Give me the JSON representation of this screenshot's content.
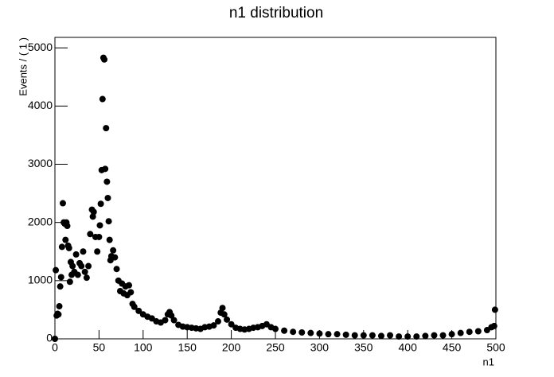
{
  "chart_data": {
    "type": "scatter",
    "title": "n1 distribution",
    "x_label": "n1",
    "y_label": "Events / ( 1 )",
    "x": [
      0,
      1,
      2,
      3,
      4,
      5,
      6,
      7,
      8,
      9,
      10,
      11,
      12,
      13,
      14,
      15,
      16,
      17,
      18,
      19,
      20,
      22,
      24,
      26,
      28,
      30,
      32,
      34,
      36,
      38,
      40,
      42,
      43,
      44,
      46,
      48,
      50,
      51,
      52,
      53,
      54,
      55,
      56,
      57,
      58,
      59,
      60,
      61,
      62,
      63,
      64,
      66,
      68,
      70,
      72,
      74,
      76,
      78,
      80,
      82,
      84,
      86,
      88,
      90,
      95,
      100,
      105,
      110,
      115,
      120,
      125,
      128,
      130,
      132,
      135,
      140,
      145,
      150,
      155,
      160,
      165,
      170,
      175,
      180,
      185,
      188,
      190,
      192,
      195,
      200,
      205,
      210,
      215,
      220,
      225,
      230,
      235,
      240,
      245,
      250,
      260,
      270,
      280,
      290,
      300,
      310,
      320,
      330,
      340,
      350,
      360,
      370,
      380,
      390,
      400,
      410,
      420,
      430,
      440,
      450,
      460,
      470,
      480,
      490,
      495,
      498,
      499
    ],
    "values": [
      0,
      1180,
      400,
      430,
      420,
      560,
      900,
      1060,
      1580,
      2330,
      2000,
      1980,
      1700,
      2000,
      1940,
      1600,
      1560,
      980,
      1320,
      1100,
      1250,
      1150,
      1450,
      1100,
      1300,
      1250,
      1500,
      1150,
      1050,
      1250,
      1800,
      2220,
      2100,
      2180,
      1750,
      1500,
      1750,
      1950,
      2320,
      2900,
      4120,
      4830,
      4800,
      2920,
      3620,
      2700,
      2420,
      2020,
      1700,
      1350,
      1420,
      1520,
      1400,
      1200,
      1000,
      820,
      950,
      780,
      900,
      750,
      920,
      800,
      600,
      550,
      480,
      420,
      380,
      350,
      300,
      280,
      320,
      420,
      460,
      400,
      320,
      240,
      210,
      200,
      190,
      180,
      170,
      200,
      210,
      230,
      300,
      450,
      530,
      420,
      330,
      250,
      190,
      170,
      160,
      170,
      190,
      200,
      220,
      250,
      200,
      170,
      140,
      120,
      110,
      100,
      90,
      80,
      80,
      70,
      60,
      60,
      60,
      50,
      60,
      40,
      40,
      40,
      50,
      60,
      60,
      80,
      100,
      120,
      130,
      150,
      200,
      220,
      500
    ],
    "color": "#000000",
    "xlim": [
      0,
      500
    ],
    "xticks": [
      0,
      50,
      100,
      150,
      200,
      250,
      300,
      350,
      400,
      450,
      500
    ],
    "ylim": [
      0,
      5180
    ],
    "yticks": [
      0,
      1000,
      2000,
      3000,
      4000,
      5000
    ]
  }
}
